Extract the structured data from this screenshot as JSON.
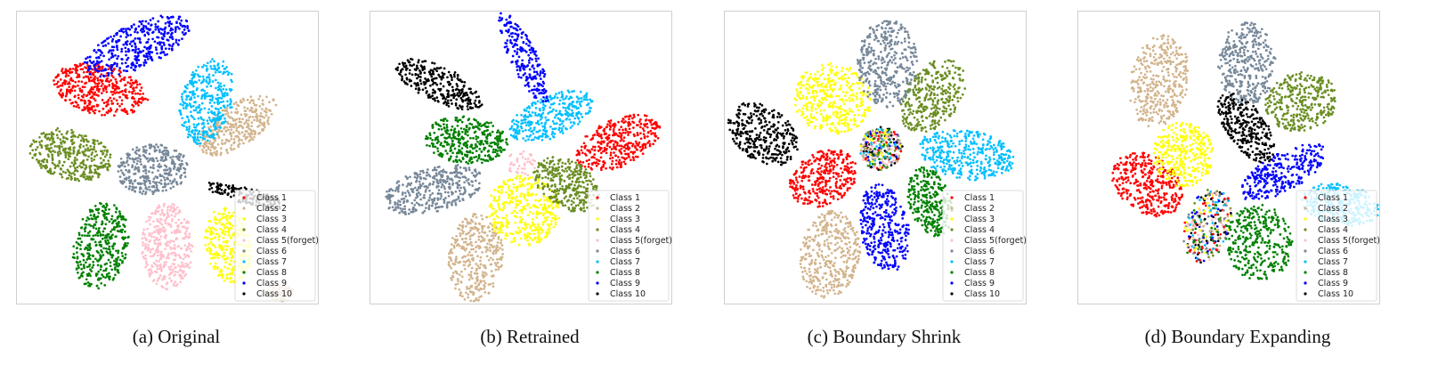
{
  "figure": {
    "classes": [
      "Class 1",
      "Class 2",
      "Class 3",
      "Class 4",
      "Class 5(forget)",
      "Class 6",
      "Class 7",
      "Class 8",
      "Class 9",
      "Class 10"
    ],
    "class_colors": [
      "#ff0000",
      "#d2b48c",
      "#ffff00",
      "#6b8e23",
      "#ffc0cb",
      "#778899",
      "#00bfff",
      "#008000",
      "#0000ff",
      "#000000"
    ]
  },
  "chart_data": [
    {
      "type": "scatter",
      "caption": "(a) Original",
      "xlabel": "",
      "ylabel": "",
      "grid": false,
      "legend_position": "lower-right",
      "clusters": [
        {
          "class": "Class 1",
          "cx": 0.28,
          "cy": 0.27,
          "rx": 0.16,
          "ry": 0.085,
          "rot": 15,
          "n": 420
        },
        {
          "class": "Class 2",
          "cx": 0.87,
          "cy": 0.96,
          "rx": 0.045,
          "ry": 0.03,
          "rot": 0,
          "n": 60
        },
        {
          "class": "Class 2",
          "cx": 0.73,
          "cy": 0.39,
          "rx": 0.15,
          "ry": 0.07,
          "rot": -35,
          "n": 330
        },
        {
          "class": "Class 3",
          "cx": 0.7,
          "cy": 0.8,
          "rx": 0.075,
          "ry": 0.13,
          "rot": -10,
          "n": 300
        },
        {
          "class": "Class 4",
          "cx": 0.18,
          "cy": 0.49,
          "rx": 0.14,
          "ry": 0.085,
          "rot": 15,
          "n": 380
        },
        {
          "class": "Class 5(forget)",
          "cx": 0.5,
          "cy": 0.8,
          "rx": 0.085,
          "ry": 0.15,
          "rot": 0,
          "n": 380
        },
        {
          "class": "Class 6",
          "cx": 0.45,
          "cy": 0.54,
          "rx": 0.12,
          "ry": 0.085,
          "rot": -5,
          "n": 340
        },
        {
          "class": "Class 7",
          "cx": 0.63,
          "cy": 0.31,
          "rx": 0.085,
          "ry": 0.15,
          "rot": 15,
          "n": 360
        },
        {
          "class": "Class 8",
          "cx": 0.28,
          "cy": 0.8,
          "rx": 0.09,
          "ry": 0.15,
          "rot": 10,
          "n": 380
        },
        {
          "class": "Class 9",
          "cx": 0.4,
          "cy": 0.12,
          "rx": 0.19,
          "ry": 0.075,
          "rot": -25,
          "n": 400
        },
        {
          "class": "Class 10",
          "cx": 0.76,
          "cy": 0.63,
          "rx": 0.14,
          "ry": 0.028,
          "rot": 15,
          "n": 160
        }
      ]
    },
    {
      "type": "scatter",
      "caption": "(b) Retrained",
      "xlabel": "",
      "ylabel": "",
      "grid": false,
      "legend_position": "lower-right",
      "clusters": [
        {
          "class": "Class 1",
          "cx": 0.82,
          "cy": 0.45,
          "rx": 0.15,
          "ry": 0.08,
          "rot": -25,
          "n": 360
        },
        {
          "class": "Class 2",
          "cx": 0.35,
          "cy": 0.84,
          "rx": 0.09,
          "ry": 0.15,
          "rot": 5,
          "n": 350
        },
        {
          "class": "Class 3",
          "cx": 0.51,
          "cy": 0.68,
          "rx": 0.12,
          "ry": 0.12,
          "rot": -20,
          "n": 380
        },
        {
          "class": "Class 4",
          "cx": 0.65,
          "cy": 0.59,
          "rx": 0.12,
          "ry": 0.08,
          "rot": 35,
          "n": 330
        },
        {
          "class": "Class 5(forget)",
          "cx": 0.5,
          "cy": 0.52,
          "rx": 0.05,
          "ry": 0.045,
          "rot": 0,
          "n": 40
        },
        {
          "class": "Class 6",
          "cx": 0.21,
          "cy": 0.61,
          "rx": 0.17,
          "ry": 0.075,
          "rot": -15,
          "n": 380
        },
        {
          "class": "Class 7",
          "cx": 0.6,
          "cy": 0.36,
          "rx": 0.15,
          "ry": 0.07,
          "rot": -25,
          "n": 320
        },
        {
          "class": "Class 8",
          "cx": 0.32,
          "cy": 0.44,
          "rx": 0.14,
          "ry": 0.08,
          "rot": 5,
          "n": 360
        },
        {
          "class": "Class 9",
          "cx": 0.51,
          "cy": 0.16,
          "rx": 0.17,
          "ry": 0.045,
          "rot": 65,
          "n": 230
        },
        {
          "class": "Class 10",
          "cx": 0.23,
          "cy": 0.25,
          "rx": 0.16,
          "ry": 0.06,
          "rot": 25,
          "n": 300
        }
      ]
    },
    {
      "type": "scatter",
      "caption": "(c) Boundary Shrink",
      "xlabel": "",
      "ylabel": "",
      "grid": false,
      "legend_position": "lower-right",
      "clusters": [
        {
          "class": "Class 1",
          "cx": 0.33,
          "cy": 0.57,
          "rx": 0.12,
          "ry": 0.09,
          "rot": -30,
          "n": 340
        },
        {
          "class": "Class 2",
          "cx": 0.35,
          "cy": 0.83,
          "rx": 0.1,
          "ry": 0.15,
          "rot": 10,
          "n": 380
        },
        {
          "class": "Class 3",
          "cx": 0.36,
          "cy": 0.3,
          "rx": 0.13,
          "ry": 0.12,
          "rot": 15,
          "n": 380
        },
        {
          "class": "Class 4",
          "cx": 0.69,
          "cy": 0.29,
          "rx": 0.09,
          "ry": 0.14,
          "rot": 35,
          "n": 340
        },
        {
          "class": "Class 5(forget)",
          "cx": 0.52,
          "cy": 0.47,
          "rx": 0.065,
          "ry": 0.07,
          "rot": 0,
          "n": 60
        },
        {
          "class": "Class 6",
          "cx": 0.54,
          "cy": 0.18,
          "rx": 0.1,
          "ry": 0.15,
          "rot": 0,
          "n": 380
        },
        {
          "class": "Class 7",
          "cx": 0.8,
          "cy": 0.49,
          "rx": 0.16,
          "ry": 0.085,
          "rot": 10,
          "n": 380
        },
        {
          "class": "Class 8",
          "cx": 0.68,
          "cy": 0.65,
          "rx": 0.07,
          "ry": 0.12,
          "rot": -15,
          "n": 280
        },
        {
          "class": "Class 9",
          "cx": 0.53,
          "cy": 0.74,
          "rx": 0.08,
          "ry": 0.15,
          "rot": -10,
          "n": 340
        },
        {
          "class": "Class 10",
          "cx": 0.13,
          "cy": 0.42,
          "rx": 0.13,
          "ry": 0.09,
          "rot": 40,
          "n": 340
        },
        {
          "class": "mixed",
          "cx": 0.52,
          "cy": 0.47,
          "rx": 0.07,
          "ry": 0.075,
          "rot": 0,
          "n": 280
        }
      ]
    },
    {
      "type": "scatter",
      "caption": "(d) Boundary Expanding",
      "xlabel": "",
      "ylabel": "",
      "grid": false,
      "legend_position": "lower-right",
      "clusters": [
        {
          "class": "Class 1",
          "cx": 0.23,
          "cy": 0.59,
          "rx": 0.13,
          "ry": 0.095,
          "rot": 40,
          "n": 360
        },
        {
          "class": "Class 2",
          "cx": 0.27,
          "cy": 0.24,
          "rx": 0.095,
          "ry": 0.16,
          "rot": 10,
          "n": 380
        },
        {
          "class": "Class 3",
          "cx": 0.35,
          "cy": 0.49,
          "rx": 0.1,
          "ry": 0.11,
          "rot": -5,
          "n": 340
        },
        {
          "class": "Class 4",
          "cx": 0.74,
          "cy": 0.31,
          "rx": 0.12,
          "ry": 0.1,
          "rot": -15,
          "n": 340
        },
        {
          "class": "Class 5(forget)",
          "cx": 0.39,
          "cy": 0.74,
          "rx": 0.03,
          "ry": 0.03,
          "rot": 0,
          "n": 20
        },
        {
          "class": "Class 6",
          "cx": 0.56,
          "cy": 0.18,
          "rx": 0.095,
          "ry": 0.14,
          "rot": 0,
          "n": 360
        },
        {
          "class": "Class 7",
          "cx": 0.87,
          "cy": 0.66,
          "rx": 0.13,
          "ry": 0.07,
          "rot": 10,
          "n": 300
        },
        {
          "class": "Class 8",
          "cx": 0.6,
          "cy": 0.79,
          "rx": 0.11,
          "ry": 0.13,
          "rot": -5,
          "n": 340
        },
        {
          "class": "Class 9",
          "cx": 0.68,
          "cy": 0.55,
          "rx": 0.16,
          "ry": 0.065,
          "rot": -30,
          "n": 300
        },
        {
          "class": "Class 10",
          "cx": 0.56,
          "cy": 0.4,
          "rx": 0.14,
          "ry": 0.065,
          "rot": 55,
          "n": 300
        },
        {
          "class": "mixed",
          "cx": 0.43,
          "cy": 0.73,
          "rx": 0.075,
          "ry": 0.13,
          "rot": 15,
          "n": 300
        }
      ]
    }
  ]
}
